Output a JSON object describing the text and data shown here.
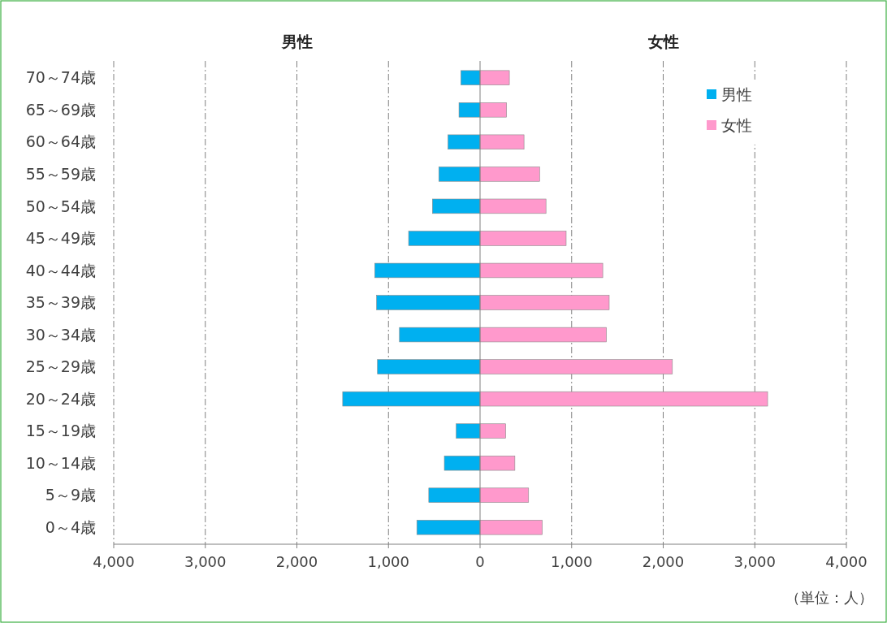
{
  "chart_data": {
    "type": "bar",
    "orientation": "horizontal",
    "stacked": true,
    "categories": [
      "70～74歳",
      "65～69歳",
      "60～64歳",
      "55～59歳",
      "50～54歳",
      "45～49歳",
      "40～44歳",
      "35～39歳",
      "30～34歳",
      "25～29歳",
      "20～24歳",
      "15～19歳",
      "10～14歳",
      "5～9歳",
      "0～4歳"
    ],
    "series": [
      {
        "name": "男性",
        "color": "#00b0f0",
        "values": [
          -210,
          -230,
          -350,
          -450,
          -520,
          -780,
          -1150,
          -1130,
          -880,
          -1120,
          -1500,
          -260,
          -390,
          -560,
          -690
        ]
      },
      {
        "name": "女性",
        "color": "#ff99cc",
        "values": [
          320,
          290,
          480,
          650,
          720,
          940,
          1340,
          1410,
          1380,
          2100,
          3140,
          280,
          380,
          530,
          680
        ]
      }
    ],
    "xlim": [
      -4000,
      4000
    ],
    "xticks": [
      {
        "value": -4000,
        "label": "4,000"
      },
      {
        "value": -3000,
        "label": "3,000"
      },
      {
        "value": -2000,
        "label": "2,000"
      },
      {
        "value": -1000,
        "label": "1,000"
      },
      0,
      {
        "value": 1000,
        "label": "1,000"
      },
      {
        "value": 2000,
        "label": "2,000"
      },
      {
        "value": 3000,
        "label": "3,000"
      },
      {
        "value": 4000,
        "label": "4,000"
      }
    ],
    "grid": "x",
    "legend": "top right",
    "annotations": [
      "男性",
      "女性",
      "（単位：人）"
    ]
  }
}
